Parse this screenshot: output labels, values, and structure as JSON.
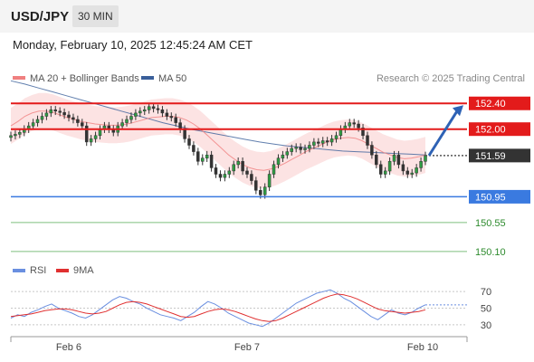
{
  "header": {
    "pair": "USD/JPY",
    "timeframe": "30 MIN",
    "datetime": "Monday, February 10, 2025 12:45:24 AM CET"
  },
  "legend": {
    "ma20_label": "MA 20 + Bollinger Bands",
    "ma50_label": "MA 50",
    "copyright": "Research © 2025 Trading Central",
    "colors": {
      "ma20": "#f08080",
      "ma50": "#3a5f9a",
      "band": "#fbd9d9"
    }
  },
  "rsi_legend": {
    "rsi_label": "RSI",
    "ma_label": "9MA",
    "colors": {
      "rsi": "#6a8fe0",
      "ma": "#e03030"
    }
  },
  "chart_data": [
    {
      "type": "candlestick",
      "x_ticks": [
        "Feb 6",
        "Feb 7",
        "Feb 10"
      ],
      "ylim": [
        150.0,
        152.6
      ],
      "last_price": 151.59,
      "forecast_target": 152.4,
      "levels": [
        {
          "value": 152.4,
          "label": "152.40",
          "kind": "resistance",
          "color": "#e31b1b"
        },
        {
          "value": 152.0,
          "label": "152.00",
          "kind": "resistance",
          "color": "#e31b1b"
        },
        {
          "value": 151.59,
          "label": "151.59",
          "kind": "last",
          "color": "#333333"
        },
        {
          "value": 150.95,
          "label": "150.95",
          "kind": "pivot",
          "color": "#3a7ae0"
        },
        {
          "value": 150.55,
          "label": "150.55",
          "kind": "support",
          "color": "#2e8b2e"
        },
        {
          "value": 150.1,
          "label": "150.10",
          "kind": "support",
          "color": "#2e8b2e"
        }
      ],
      "closes": [
        151.9,
        151.92,
        151.95,
        152.0,
        152.05,
        152.1,
        152.15,
        152.2,
        152.25,
        152.3,
        152.28,
        152.26,
        152.22,
        152.18,
        152.15,
        152.1,
        152.05,
        151.8,
        151.85,
        151.9,
        152.0,
        152.05,
        152.0,
        151.95,
        152.05,
        152.1,
        152.15,
        152.2,
        152.25,
        152.28,
        152.3,
        152.35,
        152.32,
        152.3,
        152.25,
        152.2,
        152.18,
        152.1,
        152.0,
        151.85,
        151.75,
        151.65,
        151.5,
        151.55,
        151.6,
        151.4,
        151.3,
        151.25,
        151.3,
        151.35,
        151.45,
        151.5,
        151.35,
        151.3,
        151.2,
        151.05,
        150.98,
        151.1,
        151.3,
        151.45,
        151.55,
        151.6,
        151.65,
        151.7,
        151.72,
        151.68,
        151.7,
        151.75,
        151.8,
        151.78,
        151.82,
        151.8,
        151.85,
        151.9,
        152.0,
        152.05,
        152.1,
        152.08,
        152.02,
        151.9,
        151.75,
        151.6,
        151.45,
        151.3,
        151.35,
        151.5,
        151.6,
        151.45,
        151.35,
        151.3,
        151.32,
        151.4,
        151.5,
        151.59
      ],
      "ma20": [
        152.05,
        152.12,
        152.2,
        152.25,
        152.28,
        152.28,
        152.26,
        152.22,
        152.18,
        152.15,
        152.12,
        152.1,
        152.08,
        152.07,
        152.06,
        152.06,
        152.07,
        152.09,
        152.12,
        152.15,
        152.18,
        152.19,
        152.2,
        152.2,
        152.18,
        152.14,
        152.08,
        152.0,
        151.9,
        151.8,
        151.7,
        151.6,
        151.52,
        151.45,
        151.4,
        151.37,
        151.36,
        151.38,
        151.42,
        151.47,
        151.53,
        151.59,
        151.65,
        151.7,
        151.75,
        151.8,
        151.84,
        151.86,
        151.87,
        151.86,
        151.82,
        151.76,
        151.7,
        151.64,
        151.6,
        151.56,
        151.54,
        151.55,
        151.57,
        151.6
      ],
      "ma50": [
        152.75,
        152.7,
        152.64,
        152.58,
        152.52,
        152.46,
        152.4,
        152.34,
        152.28,
        152.22,
        152.16,
        152.1,
        152.05,
        152.0,
        151.96,
        151.92,
        151.88,
        151.84,
        151.8,
        151.77,
        151.74,
        151.72,
        151.7,
        151.68,
        151.66,
        151.65,
        151.64,
        151.63,
        151.62,
        151.61,
        151.6
      ]
    },
    {
      "type": "line",
      "title": "RSI",
      "yticks": [
        30,
        50,
        70
      ],
      "ylim": [
        20,
        80
      ],
      "series": [
        {
          "name": "RSI",
          "values": [
            38,
            42,
            40,
            45,
            48,
            52,
            55,
            50,
            47,
            44,
            40,
            38,
            42,
            48,
            54,
            60,
            64,
            62,
            58,
            55,
            50,
            46,
            42,
            40,
            38,
            35,
            40,
            45,
            52,
            58,
            55,
            50,
            44,
            40,
            36,
            32,
            30,
            28,
            32,
            38,
            44,
            50,
            56,
            60,
            64,
            68,
            70,
            72,
            68,
            62,
            58,
            52,
            46,
            40,
            36,
            42,
            48,
            44,
            42,
            45,
            50,
            54
          ]
        },
        {
          "name": "9MA",
          "values": [
            40,
            41,
            42,
            43,
            45,
            47,
            48,
            49,
            49,
            48,
            46,
            44,
            43,
            44,
            46,
            50,
            54,
            57,
            58,
            57,
            55,
            52,
            49,
            46,
            43,
            40,
            39,
            40,
            43,
            46,
            48,
            49,
            48,
            46,
            43,
            40,
            37,
            35,
            34,
            35,
            38,
            42,
            46,
            50,
            54,
            58,
            62,
            65,
            67,
            66,
            64,
            61,
            57,
            53,
            49,
            47,
            46,
            45,
            44,
            45,
            46,
            48
          ]
        }
      ]
    }
  ]
}
